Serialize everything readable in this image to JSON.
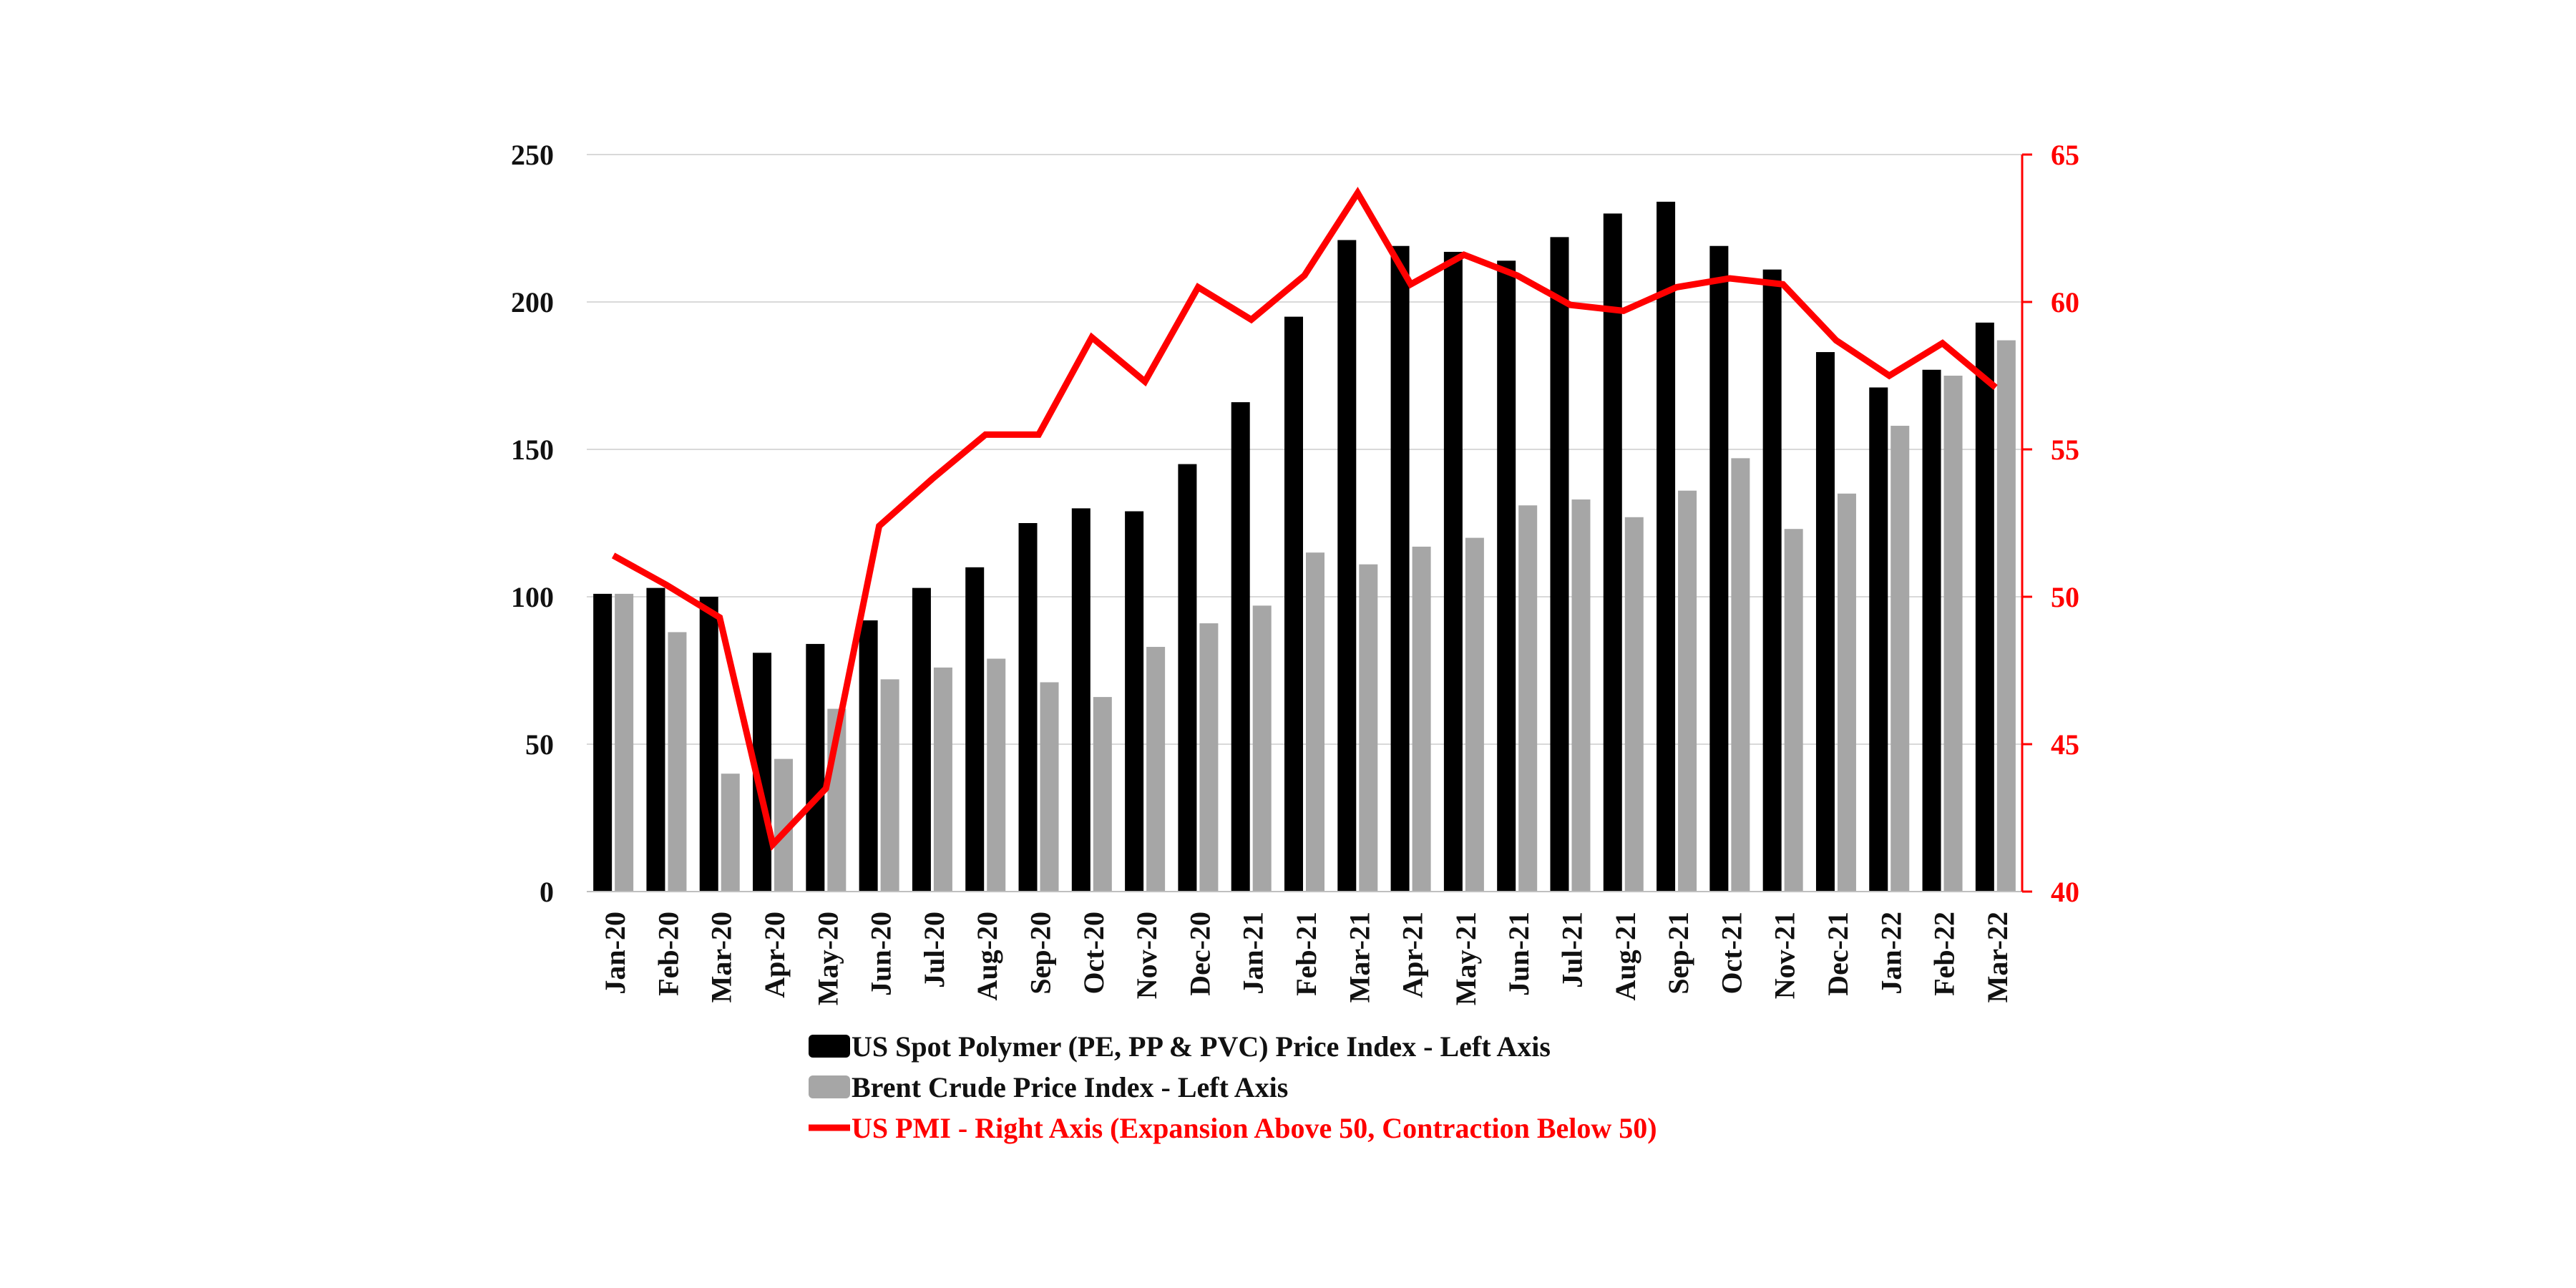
{
  "chart_data": {
    "type": "bar",
    "categories": [
      "Jan-20",
      "Feb-20",
      "Mar-20",
      "Apr-20",
      "May-20",
      "Jun-20",
      "Jul-20",
      "Aug-20",
      "Sep-20",
      "Oct-20",
      "Nov-20",
      "Dec-20",
      "Jan-21",
      "Feb-21",
      "Mar-21",
      "Apr-21",
      "May-21",
      "Jun-21",
      "Jul-21",
      "Aug-21",
      "Sep-21",
      "Oct-21",
      "Nov-21",
      "Dec-21",
      "Jan-22",
      "Feb-22",
      "Mar-22"
    ],
    "series": [
      {
        "name": "US Spot Polymer (PE, PP & PVC) Price Index - Left Axis",
        "type": "bar",
        "axis": "left",
        "color": "#000000",
        "values": [
          101,
          103,
          100,
          81,
          84,
          92,
          103,
          110,
          125,
          130,
          129,
          145,
          166,
          195,
          221,
          219,
          217,
          214,
          222,
          230,
          234,
          219,
          211,
          183,
          171,
          177,
          193
        ]
      },
      {
        "name": "Brent Crude Price Index - Left Axis",
        "type": "bar",
        "axis": "left",
        "color": "#a6a6a6",
        "values": [
          101,
          88,
          40,
          45,
          62,
          72,
          76,
          79,
          71,
          66,
          83,
          91,
          97,
          115,
          111,
          117,
          120,
          131,
          133,
          127,
          136,
          147,
          123,
          135,
          158,
          175,
          187
        ]
      },
      {
        "name": "US PMI - Right Axis (Expansion Above 50, Contraction Below 50)",
        "type": "line",
        "axis": "right",
        "color": "#ff0000",
        "values": [
          51.4,
          50.4,
          49.3,
          41.6,
          43.5,
          52.4,
          54.0,
          55.5,
          55.5,
          58.8,
          57.3,
          60.5,
          59.4,
          60.9,
          63.7,
          60.6,
          61.6,
          60.9,
          59.9,
          59.7,
          60.5,
          60.8,
          60.6,
          58.7,
          57.5,
          58.6,
          57.1
        ]
      }
    ],
    "y_left": {
      "ylim": [
        0,
        250
      ],
      "ticks": [
        "0",
        "50",
        "100",
        "150",
        "200",
        "250"
      ]
    },
    "y_right": {
      "ylim": [
        40,
        65
      ],
      "ticks": [
        "40",
        "45",
        "50",
        "55",
        "60",
        "65"
      ]
    },
    "grid": true,
    "legend_position": "bottom",
    "title": "",
    "xlabel": "",
    "ylabel": ""
  }
}
